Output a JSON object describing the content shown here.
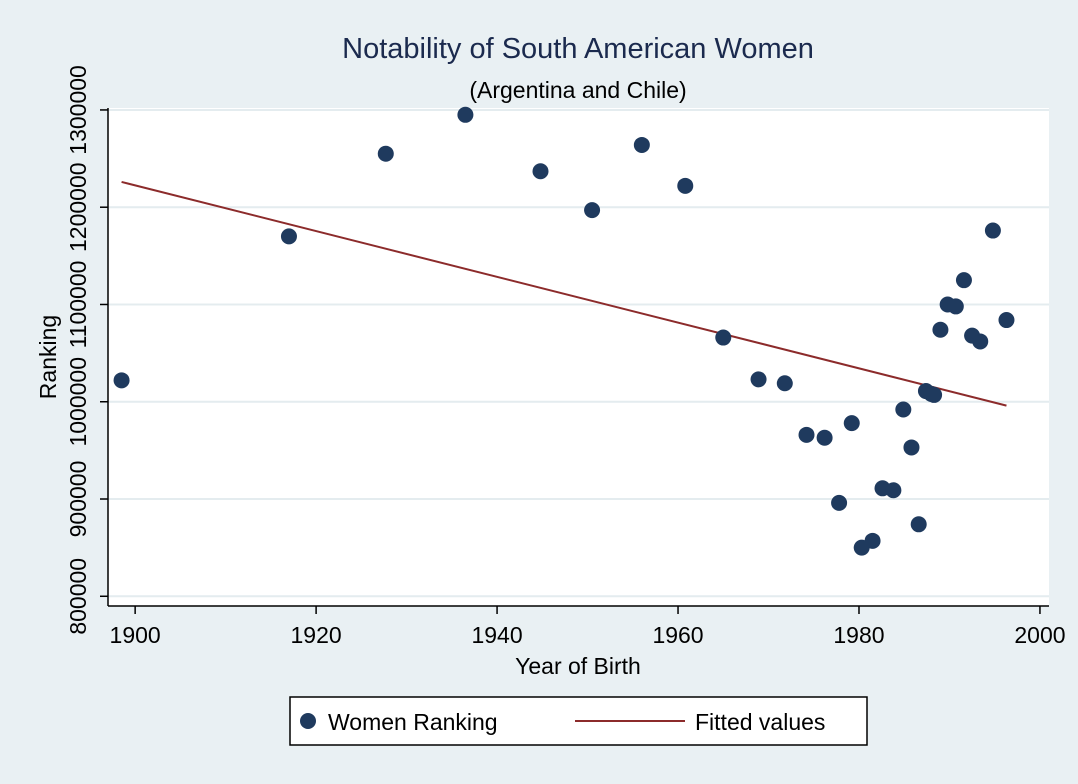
{
  "chart_data": {
    "type": "scatter",
    "title": "Notability of South American Women",
    "subtitle": "(Argentina and Chile)",
    "xlabel": "Year of Birth",
    "ylabel": "Ranking",
    "xlim": [
      1897,
      2001
    ],
    "ylim": [
      790000,
      1302000
    ],
    "x_ticks": [
      1900,
      1920,
      1940,
      1960,
      1980,
      2000
    ],
    "x_tick_labels": [
      "1900",
      "1920",
      "1940",
      "1960",
      "1980",
      "2000"
    ],
    "y_ticks": [
      800000,
      900000,
      1000000,
      1100000,
      1200000,
      1300000
    ],
    "y_tick_labels": [
      "800000",
      "900000",
      "1000000",
      "1100000",
      "1200000",
      "1300000"
    ],
    "grid": true,
    "legend_position": "bottom",
    "colors": {
      "background": "#e9f0f3",
      "plot_area": "#ffffff",
      "grid": "#e4ecef",
      "marker": "#1f3a5e",
      "fitted_line": "#8c2b2b",
      "title": "#1b2a4e"
    },
    "series": [
      {
        "name": "Women Ranking",
        "kind": "scatter",
        "points": [
          [
            1898.5,
            1022000
          ],
          [
            1917,
            1170000
          ],
          [
            1927.7,
            1255000
          ],
          [
            1936.5,
            1295000
          ],
          [
            1944.8,
            1237000
          ],
          [
            1950.5,
            1197000
          ],
          [
            1956,
            1264000
          ],
          [
            1960.8,
            1222000
          ],
          [
            1965,
            1066000
          ],
          [
            1968.9,
            1023000
          ],
          [
            1971.8,
            1019000
          ],
          [
            1974.2,
            966000
          ],
          [
            1976.2,
            963000
          ],
          [
            1977.8,
            896000
          ],
          [
            1979.2,
            978000
          ],
          [
            1980.3,
            850000
          ],
          [
            1981.5,
            857000
          ],
          [
            1982.6,
            911000
          ],
          [
            1983.8,
            909000
          ],
          [
            1984.9,
            992000
          ],
          [
            1985.8,
            953000
          ],
          [
            1986.6,
            874000
          ],
          [
            1987.4,
            1011000
          ],
          [
            1988,
            1008000
          ],
          [
            1988.3,
            1007000
          ],
          [
            1989,
            1074000
          ],
          [
            1989.8,
            1100000
          ],
          [
            1990.7,
            1098000
          ],
          [
            1991.6,
            1125000
          ],
          [
            1992.5,
            1068000
          ],
          [
            1993.4,
            1062000
          ],
          [
            1994.8,
            1176000
          ],
          [
            1996.3,
            1084000
          ]
        ]
      },
      {
        "name": "Fitted values",
        "kind": "line",
        "points": [
          [
            1898.5,
            1226000
          ],
          [
            1996.3,
            996000
          ]
        ]
      }
    ]
  }
}
